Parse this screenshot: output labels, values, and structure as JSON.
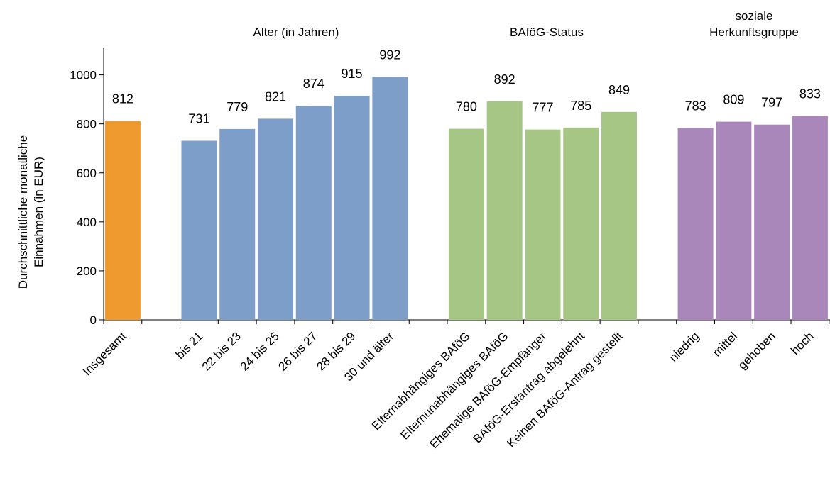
{
  "chart_data": {
    "type": "bar",
    "ylabel_lines": [
      "Durchschnittliche monatliche",
      "Einnahmen (in EUR)"
    ],
    "xlabel": "",
    "ylim": [
      0,
      1100
    ],
    "yticks": [
      0,
      200,
      400,
      600,
      800,
      1000
    ],
    "grid": false,
    "legend": "none",
    "groups": [
      {
        "title_lines": [],
        "color": "#EE9A2E",
        "categories": [
          "Insgesamt"
        ],
        "values": [
          812
        ]
      },
      {
        "title_lines": [
          "Alter (in Jahren)"
        ],
        "color": "#7D9EC9",
        "categories": [
          "bis 21",
          "22 bis 23",
          "24 bis 25",
          "26 bis 27",
          "28 bis 29",
          "30 und älter"
        ],
        "values": [
          731,
          779,
          821,
          874,
          915,
          992
        ]
      },
      {
        "title_lines": [
          "BAföG-Status"
        ],
        "color": "#A6C686",
        "categories": [
          "Elternabhängiges BAföG",
          "Elternunabhängiges BAföG",
          "Ehemalige BAföG-Empfänger",
          "BAföG-Erstantrag abgelehnt",
          "Keinen BAföG-Antrag gestellt"
        ],
        "values": [
          780,
          892,
          777,
          785,
          849
        ]
      },
      {
        "title_lines": [
          "soziale",
          "Herkunftsgruppe"
        ],
        "color": "#A987BA",
        "categories": [
          "niedrig",
          "mittel",
          "gehoben",
          "hoch"
        ],
        "values": [
          783,
          809,
          797,
          833
        ]
      }
    ]
  }
}
